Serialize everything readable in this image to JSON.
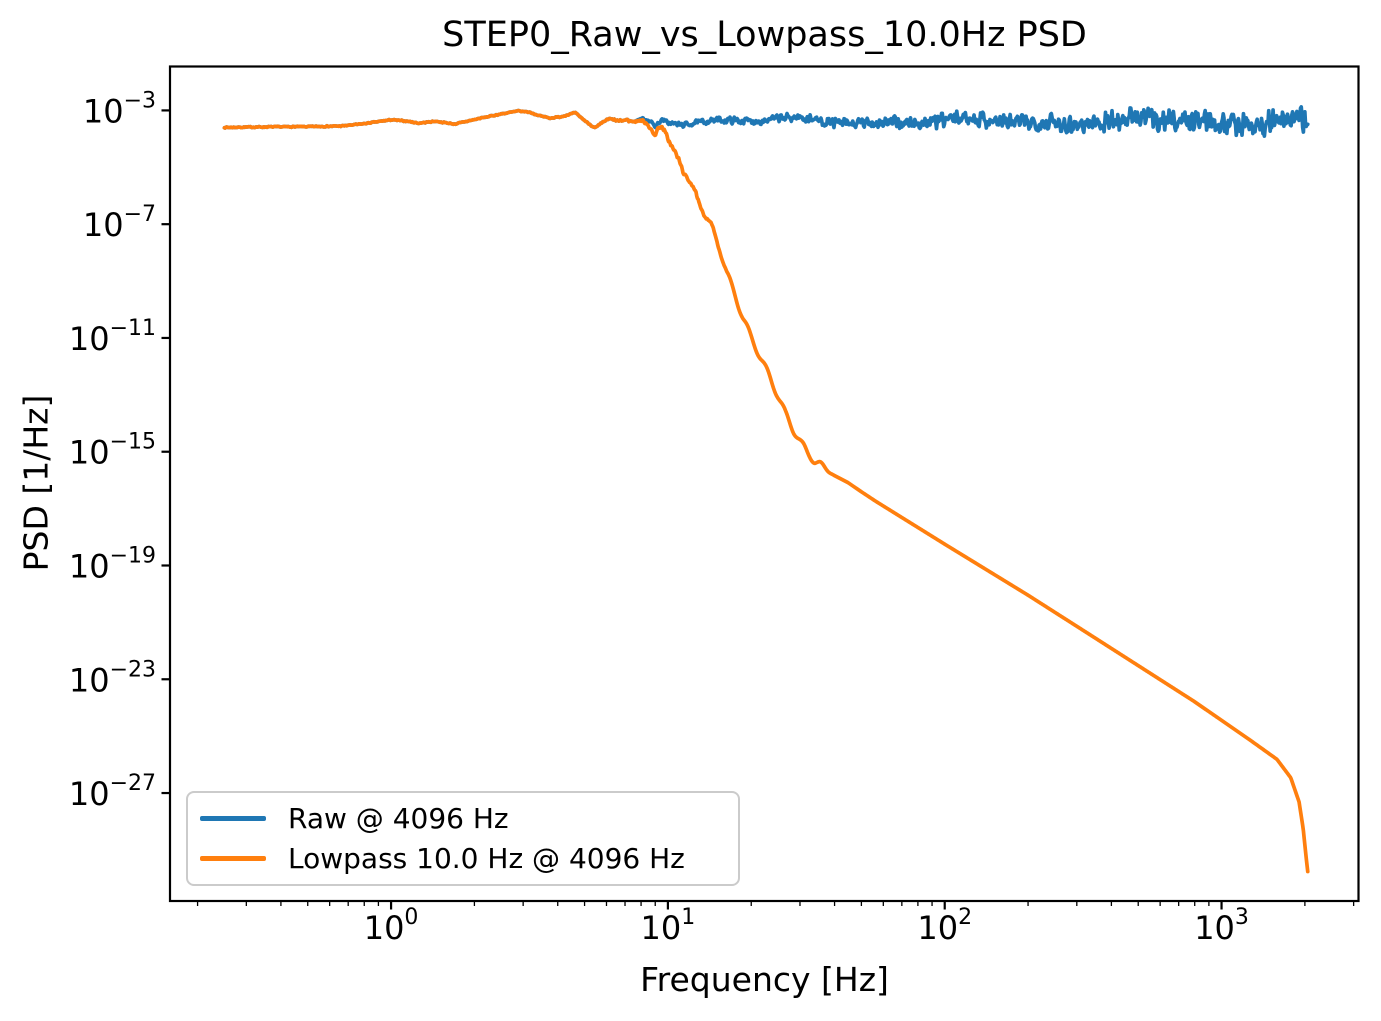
{
  "chart_data": {
    "type": "line",
    "title": "STEP0_Raw_vs_Lowpass_10.0Hz PSD",
    "xlabel": "Frequency [Hz]",
    "ylabel": "PSD [1/Hz]",
    "xscale": "log",
    "yscale": "log",
    "grid": false,
    "xlim": [
      0.159,
      3124
    ],
    "ylim": [
      1.6e-31,
      0.035
    ],
    "x_ticks": {
      "values": [
        1,
        10,
        100,
        1000
      ],
      "exponents": [
        0,
        1,
        2,
        3
      ],
      "labels": [
        "10^0",
        "10^1",
        "10^2",
        "10^3"
      ]
    },
    "y_ticks": {
      "values": [
        0.001,
        1e-07,
        1e-11,
        1e-15,
        1e-19,
        1e-23,
        1e-27
      ],
      "exponents": [
        -3,
        -7,
        -11,
        -15,
        -19,
        -23,
        -27
      ],
      "labels": [
        "10^-3",
        "10^-7",
        "10^-11",
        "10^-15",
        "10^-19",
        "10^-23",
        "10^-27"
      ]
    },
    "legend": {
      "position": "lower left",
      "entries": [
        "Raw @ 4096 Hz",
        "Lowpass 10.0 Hz @ 4096 Hz"
      ]
    },
    "series": [
      {
        "name": "Raw @ 4096 Hz",
        "color": "#1f77b4",
        "sample_rate_hz": 4096,
        "f_range_hz": [
          0.25,
          2048
        ],
        "psd_log10_vs_log10f": [
          [
            -0.611,
            -3.6
          ],
          [
            -0.45,
            -3.58
          ],
          [
            -0.3,
            -3.57
          ],
          [
            -0.18,
            -3.55
          ],
          [
            -0.1,
            -3.47
          ],
          [
            0.0,
            -3.33
          ],
          [
            0.06,
            -3.38
          ],
          [
            0.1,
            -3.45
          ],
          [
            0.16,
            -3.38
          ],
          [
            0.23,
            -3.48
          ],
          [
            0.32,
            -3.28
          ],
          [
            0.4,
            -3.12
          ],
          [
            0.46,
            -3.02
          ],
          [
            0.5,
            -3.06
          ],
          [
            0.53,
            -3.17
          ],
          [
            0.575,
            -3.27
          ],
          [
            0.615,
            -3.22
          ],
          [
            0.665,
            -3.08
          ],
          [
            0.705,
            -3.4
          ],
          [
            0.737,
            -3.62
          ],
          [
            0.775,
            -3.35
          ],
          [
            0.79,
            -3.3
          ],
          [
            0.825,
            -3.38
          ],
          [
            0.85,
            -3.33
          ],
          [
            0.875,
            -3.4
          ],
          [
            0.9,
            -3.3
          ],
          [
            0.93,
            -3.33
          ],
          [
            0.955,
            -3.55
          ],
          [
            0.975,
            -3.3
          ],
          [
            1.0,
            -3.35
          ],
          [
            1.05,
            -3.38
          ],
          [
            1.15,
            -3.34
          ],
          [
            1.3,
            -3.37
          ],
          [
            1.6,
            -3.38
          ],
          [
            2.0,
            -3.4
          ],
          [
            2.5,
            -3.38
          ],
          [
            3.0,
            -3.37
          ],
          [
            3.3113,
            -3.36
          ]
        ],
        "noise_band": {
          "seed": 7,
          "amp_log10_low": 0.022,
          "amp_log10_high": 0.57,
          "onset_log10f": 0.7
        },
        "slow_wiggle": {
          "a1": 0.085,
          "w1": 9.3,
          "p1": 1.0,
          "a2": 0.05,
          "w2": 21,
          "p2": 2.0
        }
      },
      {
        "name": "Lowpass 10.0 Hz @ 4096 Hz",
        "color": "#ff7f0e",
        "sample_rate_hz": 4096,
        "cutoff_hz": 10.0,
        "f_range_hz": [
          0.25,
          2048
        ],
        "attenuation_log10_vs_log10f": [
          [
            0.88,
            0
          ],
          [
            0.92,
            -0.1
          ],
          [
            0.947,
            -0.35
          ],
          [
            0.967,
            -0.15
          ],
          [
            0.99,
            -0.38
          ],
          [
            1.01,
            -0.75
          ],
          [
            1.035,
            -1.2
          ],
          [
            1.055,
            -1.55
          ],
          [
            1.08,
            -2.1
          ],
          [
            1.106,
            -2.7
          ],
          [
            1.135,
            -3.3
          ],
          [
            1.164,
            -3.9
          ],
          [
            1.19,
            -4.6
          ],
          [
            1.214,
            -5.4
          ],
          [
            1.245,
            -6.2
          ],
          [
            1.272,
            -6.95
          ],
          [
            1.3,
            -7.6
          ],
          [
            1.334,
            -8.3
          ],
          [
            1.365,
            -8.95
          ],
          [
            1.395,
            -9.6
          ],
          [
            1.425,
            -10.3
          ],
          [
            1.453,
            -10.85
          ],
          [
            1.48,
            -11.3
          ],
          [
            1.504,
            -11.65
          ],
          [
            1.53,
            -11.95
          ],
          [
            1.561,
            -12.15
          ],
          [
            1.6,
            -12.45
          ],
          [
            1.65,
            -12.7
          ],
          [
            1.7,
            -13.03
          ],
          [
            1.75,
            -13.35
          ],
          [
            1.9,
            -14.25
          ],
          [
            2.1,
            -15.45
          ],
          [
            2.3,
            -16.65
          ],
          [
            2.5,
            -17.9
          ],
          [
            2.7,
            -19.15
          ],
          [
            2.9,
            -20.4
          ],
          [
            3.1,
            -21.75
          ],
          [
            3.2,
            -22.45
          ],
          [
            3.25,
            -23.1
          ],
          [
            3.28,
            -23.95
          ],
          [
            3.295,
            -24.9
          ],
          [
            3.305,
            -25.85
          ],
          [
            3.3113,
            -26.4
          ]
        ],
        "rolloff_ripple": {
          "amplitude_log10": 0.12,
          "period_log10f": 0.066,
          "range_log10f": [
            1.01,
            1.6
          ]
        }
      }
    ]
  }
}
